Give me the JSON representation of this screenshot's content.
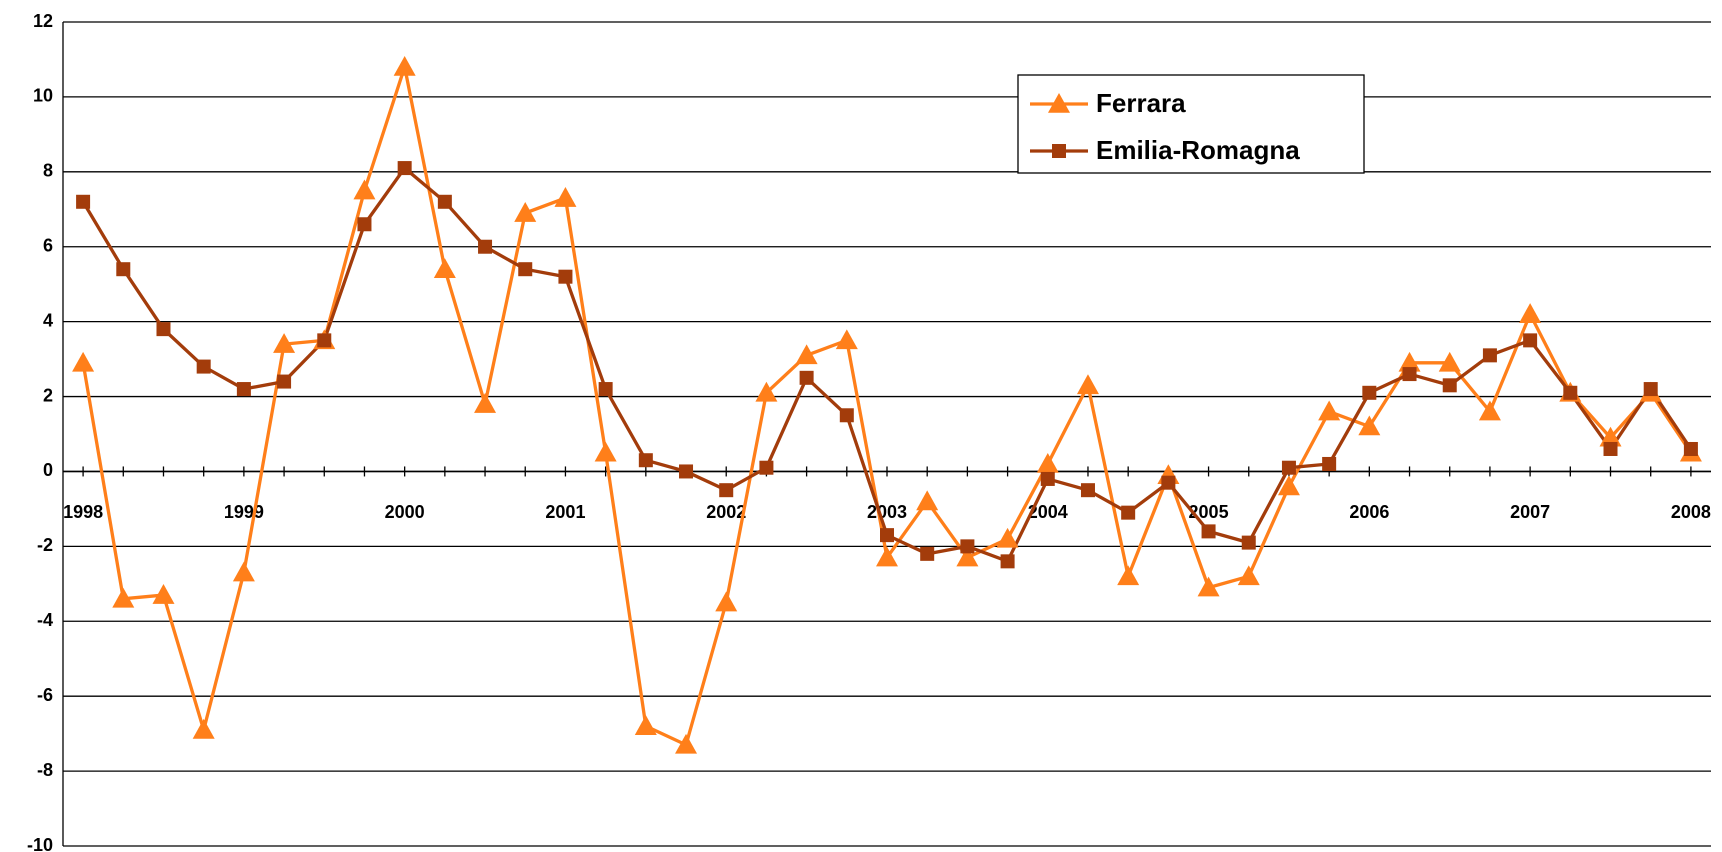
{
  "chart_data": {
    "type": "line",
    "categories": [
      "1998",
      null,
      null,
      null,
      "1999",
      null,
      null,
      null,
      "2000",
      null,
      null,
      null,
      "2001",
      null,
      null,
      null,
      "2002",
      null,
      null,
      null,
      "2003",
      null,
      null,
      null,
      "2004",
      null,
      null,
      null,
      "2005",
      null,
      null,
      null,
      "2006",
      null,
      null,
      null,
      "2007",
      null,
      null,
      null,
      "2008"
    ],
    "series": [
      {
        "name": "Ferrara",
        "color": "#ff7f1a",
        "marker": "triangle",
        "values": [
          2.9,
          -3.4,
          -3.3,
          -6.9,
          -2.7,
          3.4,
          3.5,
          7.5,
          10.8,
          5.4,
          1.8,
          6.9,
          7.3,
          0.5,
          -6.8,
          -7.3,
          -3.5,
          2.1,
          3.1,
          3.5,
          -2.3,
          -0.8,
          -2.3,
          -1.8,
          0.2,
          2.3,
          -2.8,
          -0.1,
          -3.1,
          -2.8,
          -0.4,
          1.6,
          1.2,
          2.9,
          2.9,
          1.6,
          4.2,
          2.1,
          0.9,
          2.1,
          0.5
        ]
      },
      {
        "name": "Emilia-Romagna",
        "color": "#a33c0b",
        "marker": "square",
        "values": [
          7.2,
          5.4,
          3.8,
          2.8,
          2.2,
          2.4,
          3.5,
          6.6,
          8.1,
          7.2,
          6.0,
          5.4,
          5.2,
          2.2,
          0.3,
          0.0,
          -0.5,
          0.1,
          2.5,
          1.5,
          -1.7,
          -2.2,
          -2.0,
          -2.4,
          -0.2,
          -0.5,
          -1.1,
          -0.3,
          -1.6,
          -1.9,
          0.1,
          0.2,
          2.1,
          2.6,
          2.3,
          3.1,
          3.5,
          2.1,
          0.6,
          2.2,
          0.6
        ]
      }
    ],
    "ylim": [
      -10,
      12
    ],
    "yticks": [
      -10,
      -8,
      -6,
      -4,
      -2,
      0,
      2,
      4,
      6,
      8,
      10,
      12
    ],
    "grid": true,
    "legend": "upper center"
  }
}
